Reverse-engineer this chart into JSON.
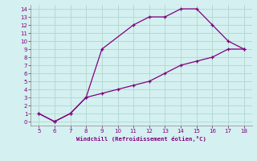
{
  "line1_x": [
    5,
    6,
    7,
    8,
    9,
    11,
    12,
    13,
    14,
    15,
    16,
    17,
    18
  ],
  "line1_y": [
    1,
    0,
    1,
    3,
    9,
    12,
    13,
    13,
    14,
    14,
    12,
    10,
    9
  ],
  "line2_x": [
    5,
    6,
    7,
    8,
    9,
    10,
    11,
    12,
    13,
    14,
    15,
    16,
    17,
    18
  ],
  "line2_y": [
    1,
    0,
    1,
    3,
    3.5,
    4.0,
    4.5,
    5.0,
    6.0,
    7.0,
    7.5,
    8.0,
    9.0,
    9.0
  ],
  "color": "#800080",
  "bg_color": "#d4f0f0",
  "grid_color": "#b0d8cc",
  "xlabel": "Windchill (Refroidissement éolien,°C)",
  "xlim": [
    4.5,
    18.5
  ],
  "ylim": [
    -0.5,
    14.5
  ],
  "xticks": [
    5,
    6,
    7,
    8,
    9,
    10,
    11,
    12,
    13,
    14,
    15,
    16,
    17,
    18
  ],
  "yticks": [
    0,
    1,
    2,
    3,
    4,
    5,
    6,
    7,
    8,
    9,
    10,
    11,
    12,
    13,
    14
  ]
}
